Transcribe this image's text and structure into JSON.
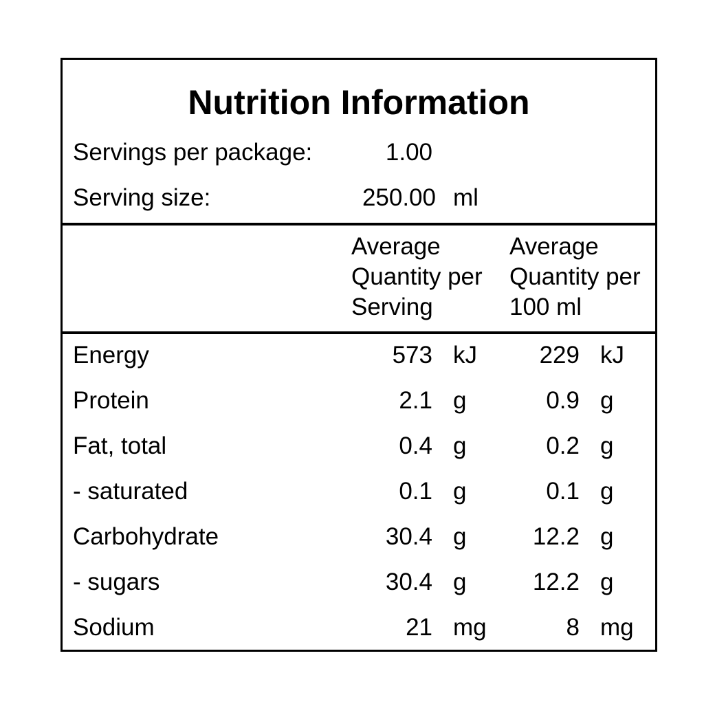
{
  "title": "Nutrition Information",
  "servings_per_package": {
    "label": "Servings per package:",
    "value": "1.00"
  },
  "serving_size": {
    "label": "Serving size:",
    "value": "250.00",
    "unit": "ml"
  },
  "columns": {
    "per_serving": [
      "Average",
      "Quantity per",
      "Serving"
    ],
    "per_100": [
      "Average",
      "Quantity per",
      "100 ml"
    ]
  },
  "rows": [
    {
      "name": "Energy",
      "serving_value": "573",
      "serving_unit": "kJ",
      "per100_value": "229",
      "per100_unit": "kJ"
    },
    {
      "name": "Protein",
      "serving_value": "2.1",
      "serving_unit": "g",
      "per100_value": "0.9",
      "per100_unit": "g"
    },
    {
      "name": "Fat, total",
      "serving_value": "0.4",
      "serving_unit": "g",
      "per100_value": "0.2",
      "per100_unit": "g"
    },
    {
      "name": "- saturated",
      "serving_value": "0.1",
      "serving_unit": "g",
      "per100_value": "0.1",
      "per100_unit": "g"
    },
    {
      "name": "Carbohydrate",
      "serving_value": "30.4",
      "serving_unit": "g",
      "per100_value": "12.2",
      "per100_unit": "g"
    },
    {
      "name": "- sugars",
      "serving_value": "30.4",
      "serving_unit": "g",
      "per100_value": "12.2",
      "per100_unit": "g"
    },
    {
      "name": "Sodium",
      "serving_value": "21",
      "serving_unit": "mg",
      "per100_value": "8",
      "per100_unit": "mg"
    }
  ]
}
